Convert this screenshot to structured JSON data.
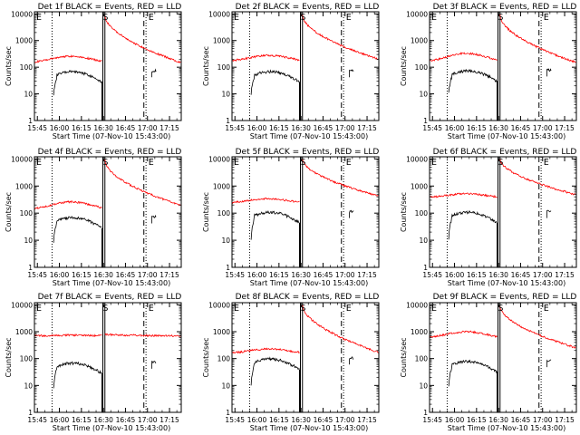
{
  "figure": {
    "type": "grid-3x3",
    "colors": {
      "events": "#000000",
      "lld": "#ff0000",
      "axis": "#000000",
      "background": "#ffffff"
    }
  },
  "common": {
    "xlabel": "Start Time (07-Nov-10 15:43:00)",
    "ylabel": "Counts/sec",
    "xticks": [
      "15:45",
      "16:00",
      "16:15",
      "16:30",
      "16:45",
      "17:00",
      "17:15"
    ],
    "yticks": [
      "1",
      "10",
      "100",
      "1000",
      "10000"
    ],
    "marker_E": "E",
    "marker_S": "S"
  },
  "chart_data": [
    {
      "type": "line",
      "title": "Det 1f BLACK = Events, RED = LLD",
      "log_y": true,
      "ylim": [
        1,
        12000
      ],
      "xlim": [
        "15:43",
        "17:23"
      ],
      "series": [
        {
          "name": "BLACK = Events",
          "color": "#000000",
          "peak_time": "16:09",
          "peak": 70,
          "start": 10
        },
        {
          "name": "RED = LLD",
          "color": "#ff0000",
          "base": 150,
          "peak_time": "16:08",
          "peak": 260,
          "post_start": 9000,
          "post_end": 150
        }
      ],
      "vlines": {
        "dotted": [
          "15:55",
          "16:59"
        ],
        "solid": [
          "16:29",
          "16:30"
        ],
        "dashed": [
          "17:00"
        ]
      }
    },
    {
      "type": "line",
      "title": "Det 2f BLACK = Events, RED = LLD",
      "log_y": true,
      "ylim": [
        1,
        12000
      ],
      "xlim": [
        "15:43",
        "17:23"
      ],
      "series": [
        {
          "name": "BLACK = Events",
          "color": "#000000",
          "peak_time": "16:09",
          "peak": 70,
          "start": 10
        },
        {
          "name": "RED = LLD",
          "color": "#ff0000",
          "base": 170,
          "peak_time": "16:08",
          "peak": 280,
          "post_start": 9000,
          "post_end": 200
        }
      ],
      "vlines": {
        "dotted": [
          "15:55",
          "16:59"
        ],
        "solid": [
          "16:29",
          "16:30"
        ],
        "dashed": [
          "17:00"
        ]
      }
    },
    {
      "type": "line",
      "title": "Det 3f BLACK = Events, RED = LLD",
      "log_y": true,
      "ylim": [
        1,
        12000
      ],
      "xlim": [
        "15:43",
        "17:23"
      ],
      "series": [
        {
          "name": "BLACK = Events",
          "color": "#000000",
          "peak_time": "16:09",
          "peak": 75,
          "start": 10
        },
        {
          "name": "RED = LLD",
          "color": "#ff0000",
          "base": 160,
          "peak_time": "16:08",
          "peak": 330,
          "post_start": 9000,
          "post_end": 150
        }
      ],
      "vlines": {
        "dotted": [
          "15:55",
          "16:59"
        ],
        "solid": [
          "16:29",
          "16:30"
        ],
        "dashed": [
          "17:00"
        ]
      }
    },
    {
      "type": "line",
      "title": "Det 4f BLACK = Events, RED = LLD",
      "log_y": true,
      "ylim": [
        1,
        12000
      ],
      "xlim": [
        "15:43",
        "17:23"
      ],
      "series": [
        {
          "name": "BLACK = Events",
          "color": "#000000",
          "peak_time": "16:09",
          "peak": 70,
          "start": 8
        },
        {
          "name": "RED = LLD",
          "color": "#ff0000",
          "base": 140,
          "peak_time": "16:08",
          "peak": 260,
          "post_start": 9000,
          "post_end": 190
        }
      ],
      "vlines": {
        "dotted": [
          "15:55",
          "16:59"
        ],
        "solid": [
          "16:29",
          "16:30"
        ],
        "dashed": [
          "17:00"
        ]
      }
    },
    {
      "type": "line",
      "title": "Det 5f BLACK = Events, RED = LLD",
      "log_y": true,
      "ylim": [
        1,
        12000
      ],
      "xlim": [
        "15:43",
        "17:23"
      ],
      "series": [
        {
          "name": "BLACK = Events",
          "color": "#000000",
          "peak_time": "16:09",
          "peak": 110,
          "start": 10
        },
        {
          "name": "RED = LLD",
          "color": "#ff0000",
          "base": 240,
          "peak_time": "16:08",
          "peak": 340,
          "post_start": 10000,
          "post_end": 430
        }
      ],
      "vlines": {
        "dotted": [
          "15:55",
          "16:59"
        ],
        "solid": [
          "16:29",
          "16:30"
        ],
        "dashed": [
          "17:00"
        ]
      }
    },
    {
      "type": "line",
      "title": "Det 6f BLACK = Events, RED = LLD",
      "log_y": true,
      "ylim": [
        1,
        12000
      ],
      "xlim": [
        "15:43",
        "17:23"
      ],
      "series": [
        {
          "name": "BLACK = Events",
          "color": "#000000",
          "peak_time": "16:09",
          "peak": 110,
          "start": 10
        },
        {
          "name": "RED = LLD",
          "color": "#ff0000",
          "base": 380,
          "peak_time": "16:08",
          "peak": 520,
          "post_start": 10000,
          "post_end": 480
        }
      ],
      "vlines": {
        "dotted": [
          "15:55",
          "16:59"
        ],
        "solid": [
          "16:29",
          "16:30"
        ],
        "dashed": [
          "17:00"
        ]
      }
    },
    {
      "type": "line",
      "title": "Det 7f BLACK = Events, RED = LLD",
      "log_y": true,
      "ylim": [
        1,
        12000
      ],
      "xlim": [
        "15:43",
        "17:23"
      ],
      "series": [
        {
          "name": "BLACK = Events",
          "color": "#000000",
          "peak_time": "16:09",
          "peak": 70,
          "start": 8
        },
        {
          "name": "RED = LLD",
          "color": "#ff0000",
          "base": 700,
          "peak_time": "16:08",
          "peak": 750,
          "post_start": 800,
          "post_end": 700
        }
      ],
      "vlines": {
        "dotted": [
          "15:55",
          "16:59"
        ],
        "solid": [
          "16:29",
          "16:30"
        ],
        "dashed": [
          "17:00"
        ]
      }
    },
    {
      "type": "line",
      "title": "Det 8f BLACK = Events, RED = LLD",
      "log_y": true,
      "ylim": [
        1,
        12000
      ],
      "xlim": [
        "15:43",
        "17:23"
      ],
      "series": [
        {
          "name": "BLACK = Events",
          "color": "#000000",
          "peak_time": "16:09",
          "peak": 100,
          "start": 10
        },
        {
          "name": "RED = LLD",
          "color": "#ff0000",
          "base": 160,
          "peak_time": "16:08",
          "peak": 230,
          "post_start": 10000,
          "post_end": 170
        }
      ],
      "vlines": {
        "dotted": [
          "15:55",
          "16:59"
        ],
        "solid": [
          "16:29",
          "16:30"
        ],
        "dashed": [
          "17:00"
        ]
      }
    },
    {
      "type": "line",
      "title": "Det 9f BLACK = Events, RED = LLD",
      "log_y": true,
      "ylim": [
        1,
        12000
      ],
      "xlim": [
        "15:43",
        "17:23"
      ],
      "series": [
        {
          "name": "BLACK = Events",
          "color": "#000000",
          "peak_time": "16:09",
          "peak": 80,
          "start": 10
        },
        {
          "name": "RED = LLD",
          "color": "#ff0000",
          "base": 600,
          "peak_time": "16:08",
          "peak": 1000,
          "post_start": 9000,
          "post_end": 250
        }
      ],
      "vlines": {
        "dotted": [
          "15:55",
          "16:59"
        ],
        "solid": [
          "16:29",
          "16:30"
        ],
        "dashed": [
          "17:00"
        ]
      }
    }
  ]
}
